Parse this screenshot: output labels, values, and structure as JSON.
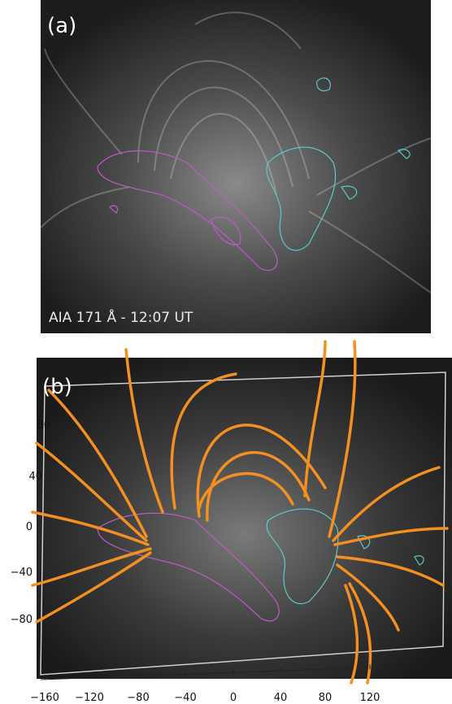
{
  "panel_a": {
    "label": "(a)",
    "caption": "AIA 171 Å  - 12:07 UT"
  },
  "panel_b": {
    "label": "(b)",
    "x_ticks": [
      "−160",
      "−120",
      "−80",
      "−40",
      "0",
      "40",
      "80",
      "120"
    ],
    "y_ticks": [
      "80",
      "40",
      "0",
      "−40",
      "−80"
    ]
  }
}
